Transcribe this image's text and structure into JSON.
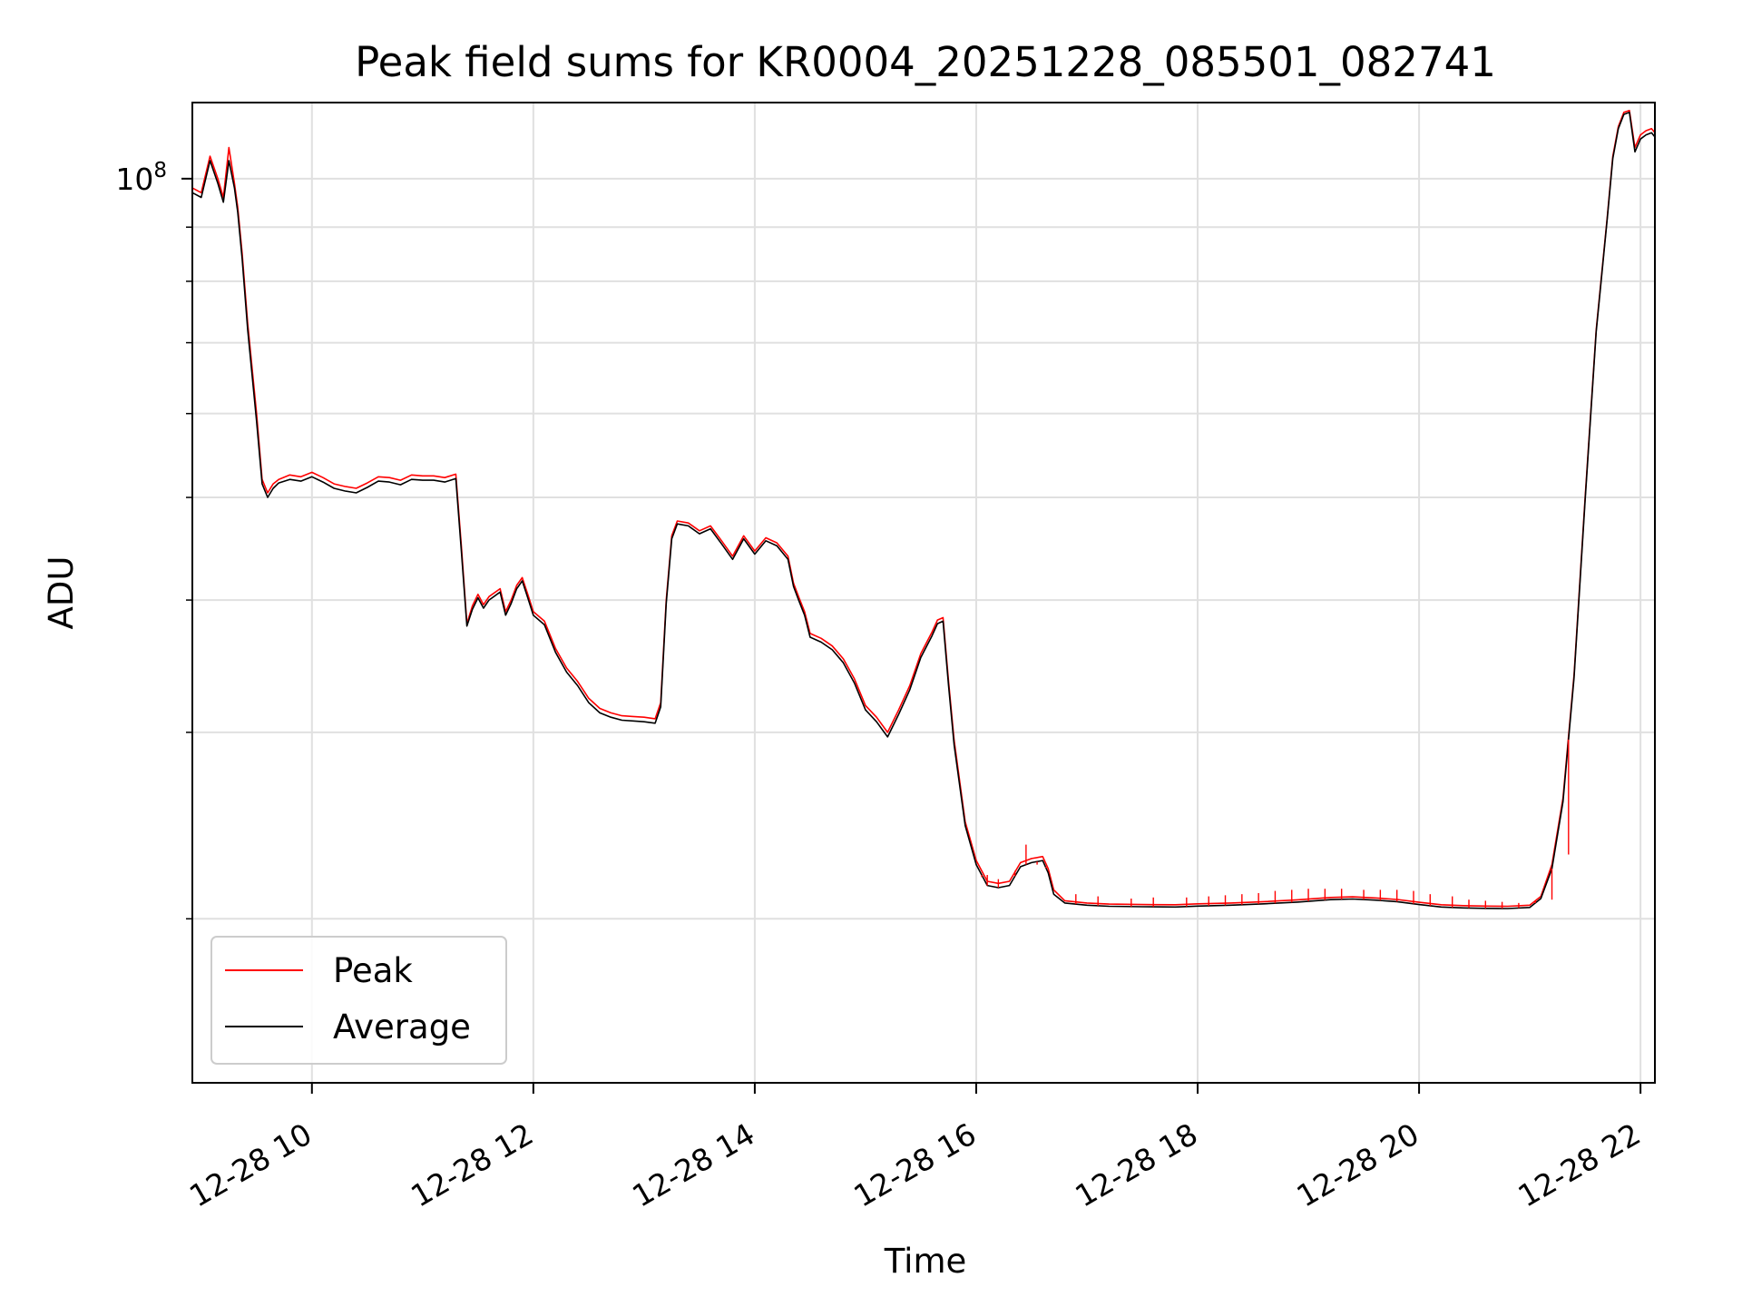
{
  "chart_data": {
    "type": "line",
    "title": "Peak field sums for KR0004_20251228_085501_082741",
    "xlabel": "Time",
    "ylabel": "ADU",
    "x_unit": "hour of 2025-12-28",
    "xlim": [
      8.92,
      22.13
    ],
    "ylim": [
      14000000,
      118000000
    ],
    "yscale": "log",
    "grid": true,
    "legend_position": "lower-left",
    "x_ticks": [
      10,
      12,
      14,
      16,
      18,
      20,
      22
    ],
    "x_tick_labels": [
      "12-28 10",
      "12-28 12",
      "12-28 14",
      "12-28 16",
      "12-28 18",
      "12-28 20",
      "12-28 22"
    ],
    "y_major_ticks": [
      100000000
    ],
    "y_major_tick_label": {
      "base": "10",
      "exp": "8"
    },
    "y_minor_ticks": [
      20000000,
      30000000,
      40000000,
      50000000,
      60000000,
      70000000,
      80000000,
      90000000
    ],
    "colors": {
      "peak": "#ff0000",
      "average": "#000000",
      "grid": "#e0e0e0"
    },
    "series": [
      {
        "name": "Peak",
        "color": "#ff0000",
        "x": [
          8.92,
          9.0,
          9.08,
          9.15,
          9.2,
          9.25,
          9.3,
          9.33,
          9.37,
          9.42,
          9.5,
          9.55,
          9.6,
          9.65,
          9.7,
          9.8,
          9.9,
          10.0,
          10.1,
          10.2,
          10.3,
          10.4,
          10.5,
          10.6,
          10.7,
          10.8,
          10.9,
          11.0,
          11.1,
          11.2,
          11.3,
          11.35,
          11.4,
          11.45,
          11.5,
          11.55,
          11.6,
          11.7,
          11.75,
          11.8,
          11.85,
          11.9,
          11.95,
          12.0,
          12.1,
          12.2,
          12.3,
          12.4,
          12.5,
          12.6,
          12.7,
          12.8,
          12.9,
          13.0,
          13.1,
          13.15,
          13.2,
          13.25,
          13.3,
          13.4,
          13.5,
          13.6,
          13.7,
          13.8,
          13.9,
          14.0,
          14.1,
          14.2,
          14.3,
          14.35,
          14.4,
          14.45,
          14.5,
          14.6,
          14.7,
          14.8,
          14.9,
          15.0,
          15.1,
          15.2,
          15.3,
          15.4,
          15.5,
          15.6,
          15.65,
          15.7,
          15.75,
          15.8,
          15.9,
          16.0,
          16.1,
          16.2,
          16.3,
          16.4,
          16.5,
          16.6,
          16.65,
          16.7,
          16.8,
          17.0,
          17.2,
          17.5,
          17.8,
          18.0,
          18.3,
          18.6,
          18.9,
          19.2,
          19.4,
          19.6,
          19.8,
          20.0,
          20.2,
          20.4,
          20.6,
          20.8,
          21.0,
          21.1,
          21.2,
          21.3,
          21.4,
          21.5,
          21.6,
          21.7,
          21.75,
          21.8,
          21.85,
          21.9,
          21.95,
          22.0,
          22.05,
          22.1,
          22.13
        ],
        "y": [
          98000000,
          97000000,
          105000000,
          100000000,
          96000000,
          107000000,
          99000000,
          94000000,
          85000000,
          73000000,
          60000000,
          52000000,
          50500000,
          51500000,
          52000000,
          52500000,
          52300000,
          52800000,
          52200000,
          51500000,
          51200000,
          51000000,
          51600000,
          52300000,
          52200000,
          51900000,
          52500000,
          52400000,
          52400000,
          52200000,
          52600000,
          45000000,
          38000000,
          39500000,
          40500000,
          39600000,
          40300000,
          41000000,
          39000000,
          40000000,
          41300000,
          42000000,
          40500000,
          39000000,
          38200000,
          36000000,
          34500000,
          33500000,
          32300000,
          31600000,
          31300000,
          31100000,
          31050000,
          31000000,
          30900000,
          32000000,
          40000000,
          46000000,
          47500000,
          47300000,
          46500000,
          47000000,
          45500000,
          44000000,
          46000000,
          44500000,
          45800000,
          45300000,
          44000000,
          41500000,
          40200000,
          39000000,
          37200000,
          36800000,
          36200000,
          35200000,
          33700000,
          31800000,
          31000000,
          30000000,
          31500000,
          33200000,
          35600000,
          37300000,
          38300000,
          38500000,
          33500000,
          29500000,
          24700000,
          22700000,
          21700000,
          21600000,
          21700000,
          22600000,
          22800000,
          22900000,
          22300000,
          21300000,
          20800000,
          20700000,
          20650000,
          20630000,
          20620000,
          20660000,
          20700000,
          20760000,
          20840000,
          20950000,
          20980000,
          20930000,
          20860000,
          20730000,
          20620000,
          20580000,
          20560000,
          20550000,
          20600000,
          21000000,
          22500000,
          26000000,
          34000000,
          50000000,
          72000000,
          92000000,
          105000000,
          112000000,
          115500000,
          116000000,
          107000000,
          110000000,
          111000000,
          111500000,
          110500000
        ],
        "spike_x": [
          16.05,
          16.1,
          16.2,
          16.35,
          16.45,
          16.55,
          16.63,
          16.9,
          17.1,
          17.4,
          17.6,
          17.9,
          18.1,
          18.25,
          18.4,
          18.55,
          18.7,
          18.85,
          19.0,
          19.15,
          19.3,
          19.5,
          19.65,
          19.8,
          19.95,
          20.1,
          20.3,
          20.45,
          20.6,
          20.75,
          20.9,
          21.05,
          21.2,
          21.35
        ],
        "spike_y": [
          21900000,
          22000000,
          21800000,
          22200000,
          23500000,
          22500000,
          22400000,
          21100000,
          21000000,
          20900000,
          20950000,
          20950000,
          21000000,
          21050000,
          21100000,
          21150000,
          21250000,
          21300000,
          21350000,
          21350000,
          21350000,
          21300000,
          21300000,
          21300000,
          21250000,
          21100000,
          21000000,
          20850000,
          20800000,
          20750000,
          20700000,
          20800000,
          20850000,
          23000000
        ]
      },
      {
        "name": "Average",
        "color": "#000000",
        "x": [
          8.92,
          9.0,
          9.08,
          9.15,
          9.2,
          9.25,
          9.3,
          9.33,
          9.37,
          9.42,
          9.5,
          9.55,
          9.6,
          9.65,
          9.7,
          9.8,
          9.9,
          10.0,
          10.1,
          10.2,
          10.3,
          10.4,
          10.5,
          10.6,
          10.7,
          10.8,
          10.9,
          11.0,
          11.1,
          11.2,
          11.3,
          11.35,
          11.4,
          11.45,
          11.5,
          11.55,
          11.6,
          11.7,
          11.75,
          11.8,
          11.85,
          11.9,
          11.95,
          12.0,
          12.1,
          12.2,
          12.3,
          12.4,
          12.5,
          12.6,
          12.7,
          12.8,
          12.9,
          13.0,
          13.1,
          13.15,
          13.2,
          13.25,
          13.3,
          13.4,
          13.5,
          13.6,
          13.7,
          13.8,
          13.9,
          14.0,
          14.1,
          14.2,
          14.3,
          14.35,
          14.4,
          14.45,
          14.5,
          14.6,
          14.7,
          14.8,
          14.9,
          15.0,
          15.1,
          15.2,
          15.3,
          15.4,
          15.5,
          15.6,
          15.65,
          15.7,
          15.75,
          15.8,
          15.9,
          16.0,
          16.1,
          16.2,
          16.3,
          16.4,
          16.5,
          16.6,
          16.65,
          16.7,
          16.8,
          17.0,
          17.2,
          17.5,
          17.8,
          18.0,
          18.3,
          18.6,
          18.9,
          19.2,
          19.4,
          19.6,
          19.8,
          20.0,
          20.2,
          20.4,
          20.6,
          20.8,
          21.0,
          21.1,
          21.2,
          21.3,
          21.4,
          21.5,
          21.6,
          21.7,
          21.75,
          21.8,
          21.85,
          21.9,
          21.95,
          22.0,
          22.05,
          22.1,
          22.13
        ],
        "y": [
          97000000,
          96000000,
          104000000,
          99000000,
          95000000,
          104000000,
          98000000,
          93000000,
          84000000,
          72000000,
          59000000,
          51500000,
          50000000,
          51000000,
          51600000,
          52000000,
          51800000,
          52300000,
          51700000,
          51000000,
          50700000,
          50500000,
          51100000,
          51800000,
          51700000,
          51400000,
          52000000,
          51900000,
          51900000,
          51700000,
          52100000,
          44500000,
          37800000,
          39200000,
          40200000,
          39300000,
          40000000,
          40700000,
          38700000,
          39700000,
          41000000,
          41700000,
          40200000,
          38700000,
          37900000,
          35700000,
          34200000,
          33200000,
          32000000,
          31300000,
          31000000,
          30800000,
          30750000,
          30700000,
          30600000,
          31700000,
          39700000,
          45700000,
          47200000,
          47000000,
          46200000,
          46700000,
          45200000,
          43700000,
          45700000,
          44200000,
          45500000,
          45000000,
          43700000,
          41200000,
          39900000,
          38700000,
          36900000,
          36500000,
          35900000,
          34900000,
          33400000,
          31500000,
          30700000,
          29700000,
          31200000,
          32900000,
          35300000,
          37000000,
          38000000,
          38200000,
          33200000,
          29200000,
          24500000,
          22500000,
          21500000,
          21400000,
          21500000,
          22400000,
          22600000,
          22700000,
          22100000,
          21100000,
          20700000,
          20600000,
          20550000,
          20530000,
          20520000,
          20560000,
          20600000,
          20660000,
          20740000,
          20850000,
          20880000,
          20830000,
          20760000,
          20630000,
          20520000,
          20480000,
          20460000,
          20450000,
          20500000,
          20900000,
          22300000,
          25800000,
          33800000,
          49700000,
          71700000,
          91700000,
          104500000,
          111500000,
          115000000,
          115500000,
          106000000,
          109000000,
          110000000,
          110500000,
          109500000
        ]
      }
    ]
  },
  "legend": {
    "items": [
      {
        "label": "Peak",
        "color": "#ff0000"
      },
      {
        "label": "Average",
        "color": "#000000"
      }
    ]
  }
}
